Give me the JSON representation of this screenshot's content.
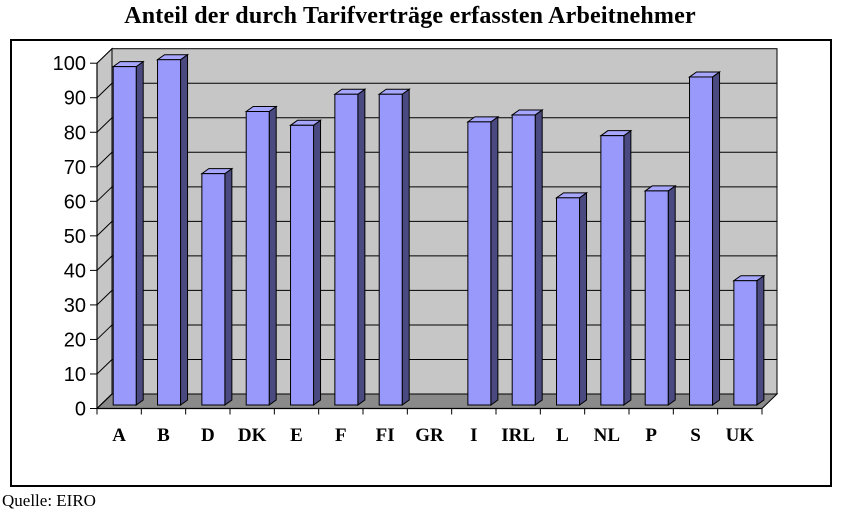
{
  "page": {
    "title": "Anteil der durch Tarifverträge erfassten Arbeitnehmer",
    "source": "Quelle: EIRO"
  },
  "chart_data": {
    "type": "bar",
    "style": "3d-column",
    "title": "Anteil der durch Tarifverträge erfassten Arbeitnehmer",
    "source": "Quelle: EIRO",
    "categories": [
      "A",
      "B",
      "D",
      "DK",
      "E",
      "F",
      "FI",
      "GR",
      "I",
      "IRL",
      "L",
      "NL",
      "P",
      "S",
      "UK"
    ],
    "values": [
      98,
      100,
      67,
      85,
      81,
      90,
      90,
      null,
      82,
      84,
      60,
      78,
      62,
      95,
      36
    ],
    "unit": "percent",
    "ylim": [
      0,
      100
    ],
    "yticks": [
      0,
      10,
      20,
      30,
      40,
      50,
      60,
      70,
      80,
      90,
      100
    ],
    "grid": true,
    "legend": false,
    "notes": "GR has no bar (missing value)",
    "colors": {
      "bar_front": "#9999FB",
      "bar_side": "#4A4A80",
      "bar_top": "#A6A6FD",
      "wall": "#C6C6C6",
      "floor": "#8A8A8A",
      "outline": "#000000",
      "background": "#FFFFFF"
    }
  }
}
